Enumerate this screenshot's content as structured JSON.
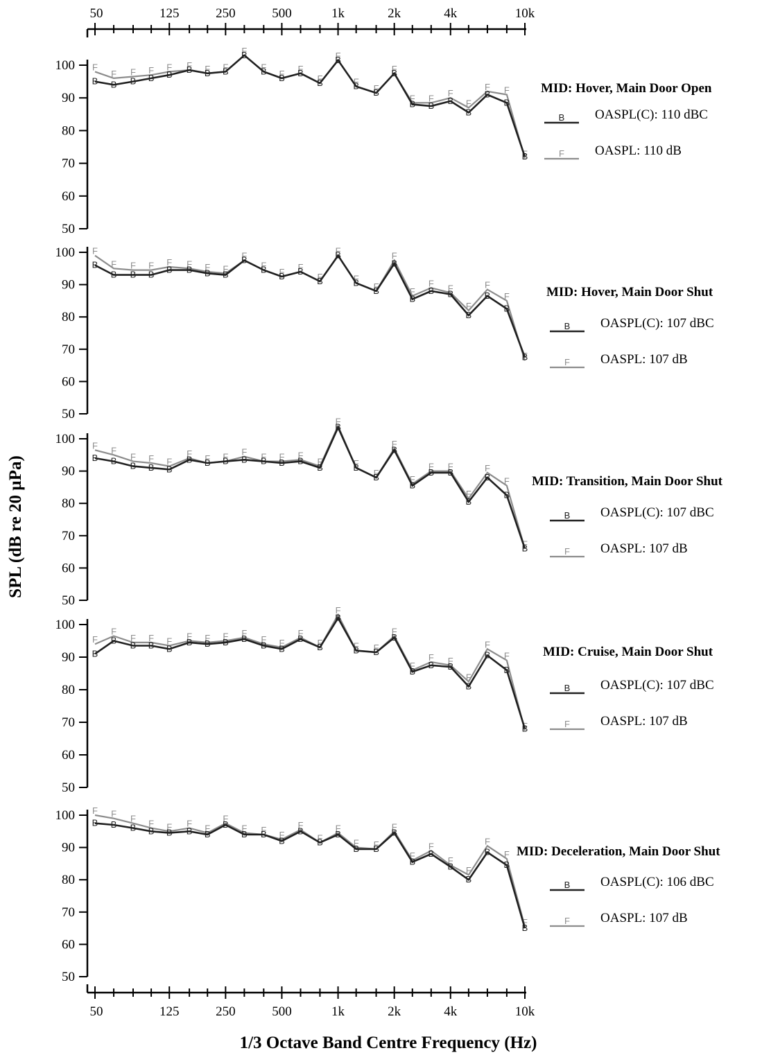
{
  "chart_data": {
    "type": "line",
    "xlabel": "1/3 Octave Band Centre Frequency (Hz)",
    "ylabel": "SPL (dB re 20 µPa)",
    "x_scale": "log",
    "x_tick_labels": [
      "50",
      "125",
      "250",
      "500",
      "1k",
      "2k",
      "4k",
      "10k"
    ],
    "x_tick_values": [
      50,
      125,
      250,
      500,
      1000,
      2000,
      4000,
      10000
    ],
    "x": [
      50,
      63,
      80,
      100,
      125,
      160,
      200,
      250,
      315,
      400,
      500,
      630,
      800,
      1000,
      1250,
      1600,
      2000,
      2500,
      3150,
      4000,
      5000,
      6300,
      8000,
      10000
    ],
    "ylim": [
      50,
      100
    ],
    "y_ticks": [
      50,
      60,
      70,
      80,
      90,
      100
    ],
    "colors": {
      "B": "#202020",
      "F": "#8c8c8c"
    },
    "panels": [
      {
        "title": "MID: Hover,  Main Door Open",
        "series": [
          {
            "marker": "B",
            "legend": "OASPL(C): 110 dBC",
            "values": [
              95,
              94,
              95,
              96,
              97,
              98.5,
              97.5,
              98,
              103,
              98,
              96,
              97.5,
              94.5,
              101.5,
              93.5,
              91.5,
              97.5,
              88,
              87.5,
              89,
              85.5,
              91,
              88.5,
              72
            ]
          },
          {
            "marker": "F",
            "legend": "OASPL: 110 dB",
            "values": [
              98,
              96,
              96.5,
              97,
              98,
              98.5,
              97.5,
              98,
              103,
              98,
              96,
              97.5,
              94.5,
              101.5,
              93.5,
              91.5,
              97.5,
              88.5,
              88.5,
              90,
              87,
              92,
              91,
              71.5
            ]
          }
        ]
      },
      {
        "title": "MID: Hover,  Main Door Shut",
        "series": [
          {
            "marker": "B",
            "legend": "OASPL(C): 107 dBC",
            "values": [
              96,
              93,
              93,
              93,
              94.5,
              94.5,
              93.5,
              93,
              97.5,
              94.5,
              92.5,
              94,
              91,
              99,
              90.5,
              88,
              96.5,
              85.5,
              88,
              87,
              80.5,
              86.5,
              82.5,
              67.5
            ]
          },
          {
            "marker": "F",
            "legend": "OASPL: 107 dB",
            "values": [
              99,
              95,
              94.5,
              94.5,
              95.5,
              95,
              94,
              93.5,
              97.5,
              94.5,
              92.5,
              94,
              91,
              99,
              90.5,
              88,
              97.5,
              86.5,
              89,
              87.5,
              82,
              88.5,
              85,
              66.5
            ]
          }
        ]
      },
      {
        "title": "MID: Transition, Main Door Shut",
        "series": [
          {
            "marker": "B",
            "legend": "OASPL(C): 107 dBC",
            "values": [
              94,
              93,
              91.5,
              91,
              90.5,
              93.5,
              92.5,
              93,
              93.5,
              93,
              92.5,
              93,
              91,
              103.5,
              91,
              88,
              96.5,
              85.5,
              89.5,
              89.5,
              80.5,
              88,
              82.5,
              66
            ]
          },
          {
            "marker": "F",
            "legend": "OASPL: 107 dB",
            "values": [
              96.5,
              95,
              93,
              92.5,
              91.5,
              94,
              92.5,
              93,
              94.5,
              93,
              93,
              93.5,
              91.5,
              104,
              91,
              88,
              97,
              86,
              90,
              90,
              81.5,
              89.5,
              85.5,
              66
            ]
          }
        ]
      },
      {
        "title": "MID: Cruise, Main Door Shut",
        "series": [
          {
            "marker": "B",
            "legend": "OASPL(C): 107 dBC",
            "values": [
              91,
              95,
              93.5,
              93.5,
              92.5,
              94.5,
              94,
              94.5,
              95.5,
              93.5,
              92.5,
              95.5,
              93,
              102,
              92,
              91.5,
              96,
              85.5,
              87.5,
              87,
              81,
              90.5,
              86,
              68
            ]
          },
          {
            "marker": "F",
            "legend": "OASPL: 107 dB",
            "values": [
              94,
              96.5,
              94.5,
              94.5,
              93.5,
              95,
              94.5,
              95,
              96,
              94,
              93,
              96,
              93,
              103,
              92,
              91.5,
              96.5,
              86,
              88.5,
              87.5,
              82.5,
              92.5,
              89,
              67.5
            ]
          }
        ]
      },
      {
        "title": "MID: Deceleration, Main Door Shut",
        "series": [
          {
            "marker": "B",
            "legend": "OASPL(C): 106 dBC",
            "values": [
              97.5,
              97,
              96,
              95,
              94.5,
              95,
              94,
              97,
              94,
              94,
              92,
              95,
              91.5,
              94,
              89.5,
              89.5,
              94.5,
              85.5,
              88,
              84,
              80,
              88.5,
              84.5,
              65
            ]
          },
          {
            "marker": "F",
            "legend": "OASPL: 107 dB",
            "values": [
              100,
              99,
              97.5,
              96,
              95,
              96,
              94.5,
              97.5,
              94.5,
              94,
              92.5,
              95.5,
              91.5,
              94.5,
              90,
              89.5,
              95,
              86,
              89,
              84.5,
              81.5,
              90.5,
              86.5,
              65.5
            ]
          }
        ]
      }
    ]
  }
}
